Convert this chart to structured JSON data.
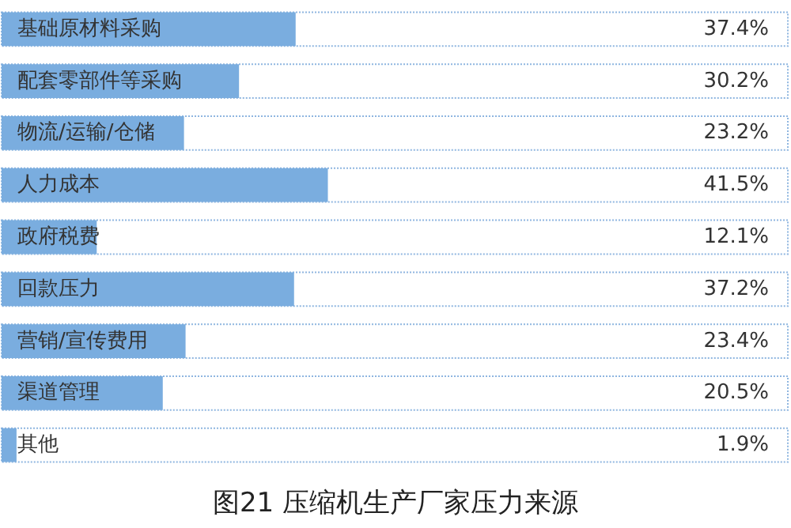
{
  "chart_data": {
    "type": "bar",
    "orientation": "horizontal",
    "title": "图21 压缩机生产厂家压力来源",
    "categories": [
      "基础原材料采购",
      "配套零部件等采购",
      "物流/运输/仓储",
      "人力成本",
      "政府税费",
      "回款压力",
      "营销/宣传费用",
      "渠道管理",
      "其他"
    ],
    "values": [
      37.4,
      30.2,
      23.2,
      41.5,
      12.1,
      37.2,
      23.4,
      20.5,
      1.9
    ],
    "value_labels": [
      "37.4%",
      "30.2%",
      "23.2%",
      "41.5%",
      "12.1%",
      "37.2%",
      "23.4%",
      "20.5%",
      "1.9%"
    ],
    "color": "#7aaddf",
    "xlim": [
      0,
      100
    ]
  }
}
